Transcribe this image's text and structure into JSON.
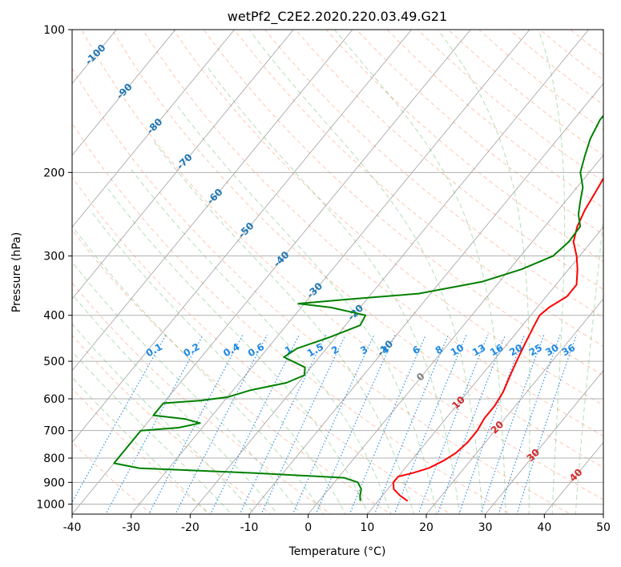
{
  "chart_data": {
    "type": "line",
    "title": "wetPf2_C2E2.2020.220.03.49.G21",
    "xlabel": "Temperature (°C)",
    "ylabel": "Pressure (hPa)",
    "xlim": [
      -40,
      50
    ],
    "ylim": [
      1050,
      100
    ],
    "y_scale": "log",
    "x_ticks": [
      -40,
      -30,
      -20,
      -10,
      0,
      10,
      20,
      30,
      40,
      50
    ],
    "y_ticks": [
      100,
      200,
      300,
      400,
      500,
      600,
      700,
      800,
      900,
      1000
    ],
    "grid": true,
    "series": [
      {
        "color": "#ff0000",
        "x_by_pressure": [
          {
            "p": 985,
            "t": 15
          },
          {
            "p": 960,
            "t": 13
          },
          {
            "p": 930,
            "t": 11
          },
          {
            "p": 900,
            "t": 10
          },
          {
            "p": 875,
            "t": 10
          },
          {
            "p": 860,
            "t": 12
          },
          {
            "p": 840,
            "t": 14
          },
          {
            "p": 810,
            "t": 15.5
          },
          {
            "p": 780,
            "t": 16.5
          },
          {
            "p": 740,
            "t": 17
          },
          {
            "p": 700,
            "t": 17
          },
          {
            "p": 660,
            "t": 16.5
          },
          {
            "p": 620,
            "t": 16.5
          },
          {
            "p": 580,
            "t": 16
          },
          {
            "p": 540,
            "t": 15
          },
          {
            "p": 500,
            "t": 14
          },
          {
            "p": 460,
            "t": 13
          },
          {
            "p": 420,
            "t": 12
          },
          {
            "p": 400,
            "t": 11.5
          },
          {
            "p": 385,
            "t": 12
          },
          {
            "p": 365,
            "t": 13.5
          },
          {
            "p": 345,
            "t": 13.5
          },
          {
            "p": 320,
            "t": 11.5
          },
          {
            "p": 300,
            "t": 9.5
          },
          {
            "p": 280,
            "t": 7
          },
          {
            "p": 260,
            "t": 5.5
          },
          {
            "p": 240,
            "t": 4.5
          },
          {
            "p": 220,
            "t": 3.8
          },
          {
            "p": 200,
            "t": 3
          },
          {
            "p": 185,
            "t": 1.5
          },
          {
            "p": 175,
            "t": 1.5
          },
          {
            "p": 160,
            "t": 2.2
          },
          {
            "p": 145,
            "t": 3.5
          },
          {
            "p": 130,
            "t": 6
          },
          {
            "p": 120,
            "t": 8.5
          },
          {
            "p": 110,
            "t": 12.5
          },
          {
            "p": 100,
            "t": 15
          }
        ]
      },
      {
        "color": "#008000",
        "x_by_pressure": [
          {
            "p": 985,
            "t": 7
          },
          {
            "p": 960,
            "t": 6.2
          },
          {
            "p": 930,
            "t": 5.5
          },
          {
            "p": 900,
            "t": 4
          },
          {
            "p": 880,
            "t": 1
          },
          {
            "p": 860,
            "t": -15
          },
          {
            "p": 840,
            "t": -35
          },
          {
            "p": 820,
            "t": -40
          },
          {
            "p": 700,
            "t": -40
          },
          {
            "p": 690,
            "t": -34
          },
          {
            "p": 675,
            "t": -31
          },
          {
            "p": 662,
            "t": -34
          },
          {
            "p": 650,
            "t": -40
          },
          {
            "p": 613,
            "t": -40
          },
          {
            "p": 605,
            "t": -34
          },
          {
            "p": 595,
            "t": -30
          },
          {
            "p": 575,
            "t": -27
          },
          {
            "p": 555,
            "t": -22
          },
          {
            "p": 535,
            "t": -20
          },
          {
            "p": 515,
            "t": -21
          },
          {
            "p": 490,
            "t": -26
          },
          {
            "p": 470,
            "t": -25
          },
          {
            "p": 445,
            "t": -21
          },
          {
            "p": 420,
            "t": -17.5
          },
          {
            "p": 400,
            "t": -18
          },
          {
            "p": 385,
            "t": -25
          },
          {
            "p": 378,
            "t": -31
          },
          {
            "p": 370,
            "t": -23
          },
          {
            "p": 360,
            "t": -12
          },
          {
            "p": 340,
            "t": -3
          },
          {
            "p": 320,
            "t": 2
          },
          {
            "p": 300,
            "t": 5.5
          },
          {
            "p": 280,
            "t": 6.2
          },
          {
            "p": 260,
            "t": 6
          },
          {
            "p": 245,
            "t": 4
          },
          {
            "p": 230,
            "t": 2.5
          },
          {
            "p": 215,
            "t": 1
          },
          {
            "p": 200,
            "t": -1.5
          },
          {
            "p": 185,
            "t": -3
          },
          {
            "p": 170,
            "t": -4.5
          },
          {
            "p": 155,
            "t": -5.5
          },
          {
            "p": 145,
            "t": -5.5
          },
          {
            "p": 135,
            "t": -5.5
          },
          {
            "p": 125,
            "t": -4.5
          },
          {
            "p": 115,
            "t": -2
          },
          {
            "p": 105,
            "t": 1.5
          },
          {
            "p": 100,
            "t": 3
          }
        ]
      }
    ],
    "isotherm_labels": [
      "-100",
      "-90",
      "-80",
      "-70",
      "-60",
      "-50",
      "-40",
      "-30",
      "-20",
      "-10",
      "0",
      "10",
      "20",
      "30",
      "40"
    ],
    "mixing_ratio_labels": [
      "0.1",
      "0.2",
      "0.4",
      "0.6",
      "1",
      "1.5",
      "2",
      "3",
      "4",
      "6",
      "8",
      "10",
      "13",
      "16",
      "20",
      "25",
      "30",
      "36"
    ],
    "colors": {
      "temperature": "#ff0000",
      "dewpoint": "#008000",
      "isotherm_label_cold": "#1f77b4",
      "isotherm_label_warm": "#d62728",
      "mixing_ratio": "#1e88e5",
      "dry_adiabat": "#ffa07a",
      "moist_adiabat": "#2ca02c",
      "isotherm": "#808080"
    }
  }
}
